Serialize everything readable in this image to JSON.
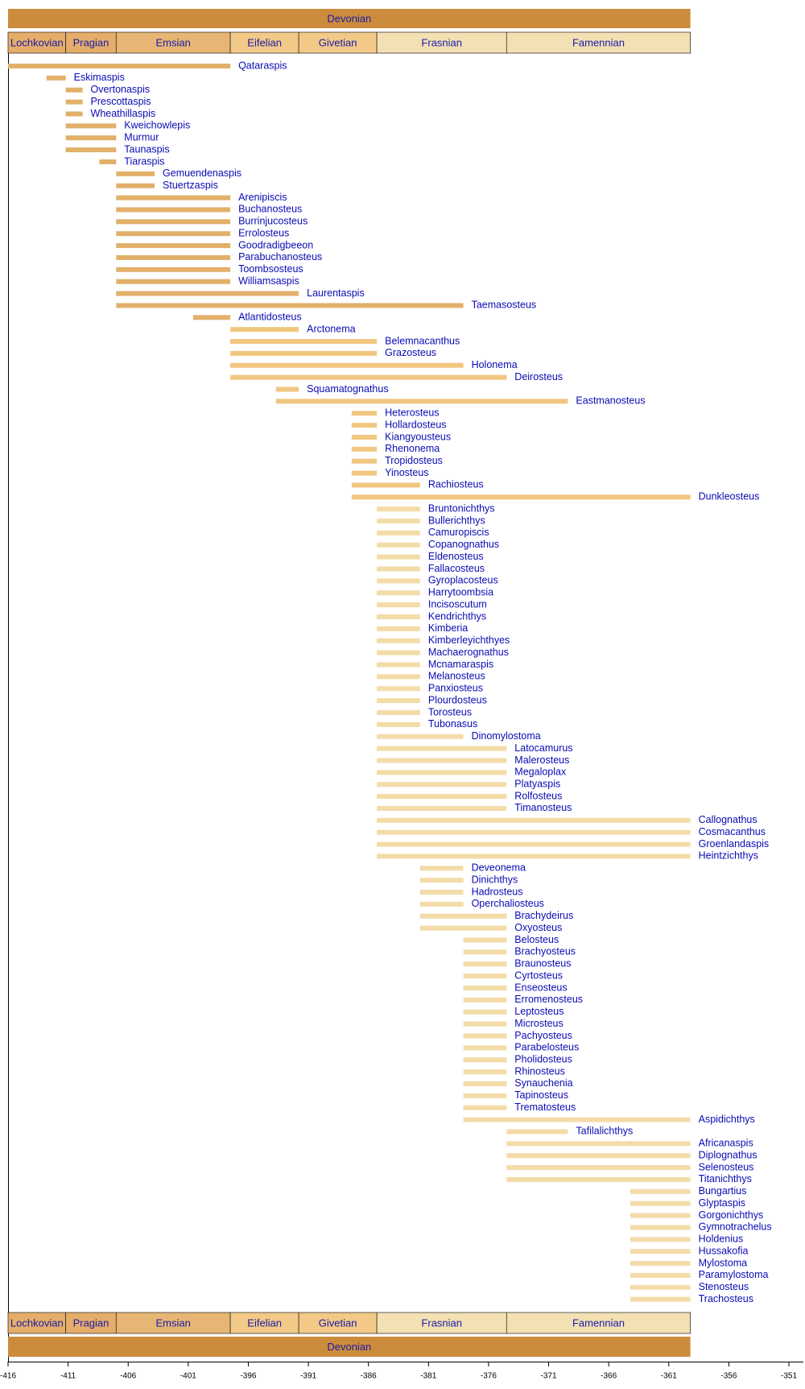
{
  "chart_data": {
    "type": "timeline",
    "xlim": [
      -416,
      -351
    ],
    "xticks": [
      -416,
      -411,
      -406,
      -401,
      -396,
      -391,
      -386,
      -381,
      -376,
      -371,
      -366,
      -361,
      -356,
      -351
    ],
    "period": {
      "name": "Devonian",
      "start": -416,
      "end": -359.2,
      "color": "#cc8c3c"
    },
    "stages": [
      {
        "name": "Lochkovian",
        "start": -416,
        "end": -411.2,
        "color": "#e5ad69"
      },
      {
        "name": "Pragian",
        "start": -411.2,
        "end": -407,
        "color": "#e5ad69"
      },
      {
        "name": "Emsian",
        "start": -407,
        "end": -397.5,
        "color": "#e7b674"
      },
      {
        "name": "Eifelian",
        "start": -397.5,
        "end": -391.8,
        "color": "#f2c987"
      },
      {
        "name": "Givetian",
        "start": -391.8,
        "end": -385.3,
        "color": "#f2c987"
      },
      {
        "name": "Frasnian",
        "start": -385.3,
        "end": -374.5,
        "color": "#f3e0b3"
      },
      {
        "name": "Famennian",
        "start": -374.5,
        "end": -359.2,
        "color": "#f3e0b3"
      }
    ],
    "taxa": [
      {
        "name": "Qataraspis",
        "start": -416,
        "end": -397.5,
        "color": "#e2b06a"
      },
      {
        "name": "Eskimaspis",
        "start": -412.8,
        "end": -411.2,
        "color": "#e2b06a"
      },
      {
        "name": "Overtonaspis",
        "start": -411.2,
        "end": -409.8,
        "color": "#e2b06a"
      },
      {
        "name": "Prescottaspis",
        "start": -411.2,
        "end": -409.8,
        "color": "#e2b06a"
      },
      {
        "name": "Wheathillaspis",
        "start": -411.2,
        "end": -409.8,
        "color": "#e2b06a"
      },
      {
        "name": "Kweichowlepis",
        "start": -411.2,
        "end": -407,
        "color": "#e2b06a"
      },
      {
        "name": "Murmur",
        "start": -411.2,
        "end": -407,
        "color": "#e2b06a"
      },
      {
        "name": "Taunaspis",
        "start": -411.2,
        "end": -407,
        "color": "#e2b06a"
      },
      {
        "name": "Tiaraspis",
        "start": -408.4,
        "end": -407,
        "color": "#e2b06a"
      },
      {
        "name": "Gemuendenaspis",
        "start": -407,
        "end": -403.8,
        "color": "#e2b06a"
      },
      {
        "name": "Stuertzaspis",
        "start": -407,
        "end": -403.8,
        "color": "#e2b06a"
      },
      {
        "name": "Arenipiscis",
        "start": -407,
        "end": -397.5,
        "color": "#e2b06a"
      },
      {
        "name": "Buchanosteus",
        "start": -407,
        "end": -397.5,
        "color": "#e2b06a"
      },
      {
        "name": "Burrinjucosteus",
        "start": -407,
        "end": -397.5,
        "color": "#e2b06a"
      },
      {
        "name": "Errolosteus",
        "start": -407,
        "end": -397.5,
        "color": "#e2b06a"
      },
      {
        "name": "Goodradigbeeon",
        "start": -407,
        "end": -397.5,
        "color": "#e2b06a"
      },
      {
        "name": "Parabuchanosteus",
        "start": -407,
        "end": -397.5,
        "color": "#e2b06a"
      },
      {
        "name": "Toombsosteus",
        "start": -407,
        "end": -397.5,
        "color": "#e2b06a"
      },
      {
        "name": "Williamsaspis",
        "start": -407,
        "end": -397.5,
        "color": "#e2b06a"
      },
      {
        "name": "Laurentaspis",
        "start": -407,
        "end": -391.8,
        "color": "#e2b06a"
      },
      {
        "name": "Taemasosteus",
        "start": -407,
        "end": -378.1,
        "color": "#e2b06a"
      },
      {
        "name": "Atlantidosteus",
        "start": -400.6,
        "end": -397.5,
        "color": "#e2b06a"
      },
      {
        "name": "Arctonema",
        "start": -397.5,
        "end": -391.8,
        "color": "#f1c67f"
      },
      {
        "name": "Belemnacanthus",
        "start": -397.5,
        "end": -385.3,
        "color": "#f1c67f"
      },
      {
        "name": "Grazosteus",
        "start": -397.5,
        "end": -385.3,
        "color": "#f1c67f"
      },
      {
        "name": "Holonema",
        "start": -397.5,
        "end": -378.1,
        "color": "#f1c67f"
      },
      {
        "name": "Deirosteus",
        "start": -397.5,
        "end": -374.5,
        "color": "#f1c67f"
      },
      {
        "name": "Squamatognathus",
        "start": -393.7,
        "end": -391.8,
        "color": "#f1c67f"
      },
      {
        "name": "Eastmanosteus",
        "start": -393.7,
        "end": -369.4,
        "color": "#f1c67f"
      },
      {
        "name": "Heterosteus",
        "start": -387.4,
        "end": -385.3,
        "color": "#f1c67f"
      },
      {
        "name": "Hollardosteus",
        "start": -387.4,
        "end": -385.3,
        "color": "#f1c67f"
      },
      {
        "name": "Kiangyousteus",
        "start": -387.4,
        "end": -385.3,
        "color": "#f1c67f"
      },
      {
        "name": "Rhenonema",
        "start": -387.4,
        "end": -385.3,
        "color": "#f1c67f"
      },
      {
        "name": "Tropidosteus",
        "start": -387.4,
        "end": -385.3,
        "color": "#f1c67f"
      },
      {
        "name": "Yinosteus",
        "start": -387.4,
        "end": -385.3,
        "color": "#f1c67f"
      },
      {
        "name": "Rachiosteus",
        "start": -387.4,
        "end": -381.7,
        "color": "#f1c67f"
      },
      {
        "name": "Dunkleosteus",
        "start": -387.4,
        "end": -359.2,
        "color": "#f1c67f"
      },
      {
        "name": "Bruntonichthys",
        "start": -385.3,
        "end": -381.7,
        "color": "#f3dca8"
      },
      {
        "name": "Bullerichthys",
        "start": -385.3,
        "end": -381.7,
        "color": "#f3dca8"
      },
      {
        "name": "Camuropiscis",
        "start": -385.3,
        "end": -381.7,
        "color": "#f3dca8"
      },
      {
        "name": "Copanognathus",
        "start": -385.3,
        "end": -381.7,
        "color": "#f3dca8"
      },
      {
        "name": "Eldenosteus",
        "start": -385.3,
        "end": -381.7,
        "color": "#f3dca8"
      },
      {
        "name": "Fallacosteus",
        "start": -385.3,
        "end": -381.7,
        "color": "#f3dca8"
      },
      {
        "name": "Gyroplacosteus",
        "start": -385.3,
        "end": -381.7,
        "color": "#f3dca8"
      },
      {
        "name": "Harrytoombsia",
        "start": -385.3,
        "end": -381.7,
        "color": "#f3dca8"
      },
      {
        "name": "Incisoscutum",
        "start": -385.3,
        "end": -381.7,
        "color": "#f3dca8"
      },
      {
        "name": "Kendrichthys",
        "start": -385.3,
        "end": -381.7,
        "color": "#f3dca8"
      },
      {
        "name": "Kimberia",
        "start": -385.3,
        "end": -381.7,
        "color": "#f3dca8"
      },
      {
        "name": "Kimberleyichthyes",
        "start": -385.3,
        "end": -381.7,
        "color": "#f3dca8"
      },
      {
        "name": "Machaerognathus",
        "start": -385.3,
        "end": -381.7,
        "color": "#f3dca8"
      },
      {
        "name": "Mcnamaraspis",
        "start": -385.3,
        "end": -381.7,
        "color": "#f3dca8"
      },
      {
        "name": "Melanosteus",
        "start": -385.3,
        "end": -381.7,
        "color": "#f3dca8"
      },
      {
        "name": "Panxiosteus",
        "start": -385.3,
        "end": -381.7,
        "color": "#f3dca8"
      },
      {
        "name": "Plourdosteus",
        "start": -385.3,
        "end": -381.7,
        "color": "#f3dca8"
      },
      {
        "name": "Torosteus",
        "start": -385.3,
        "end": -381.7,
        "color": "#f3dca8"
      },
      {
        "name": "Tubonasus",
        "start": -385.3,
        "end": -381.7,
        "color": "#f3dca8"
      },
      {
        "name": "Dinomylostoma",
        "start": -385.3,
        "end": -378.1,
        "color": "#f3dca8"
      },
      {
        "name": "Latocamurus",
        "start": -385.3,
        "end": -374.5,
        "color": "#f3dca8"
      },
      {
        "name": "Malerosteus",
        "start": -385.3,
        "end": -374.5,
        "color": "#f3dca8"
      },
      {
        "name": "Megaloplax",
        "start": -385.3,
        "end": -374.5,
        "color": "#f3dca8"
      },
      {
        "name": "Platyaspis",
        "start": -385.3,
        "end": -374.5,
        "color": "#f3dca8"
      },
      {
        "name": "Rolfosteus",
        "start": -385.3,
        "end": -374.5,
        "color": "#f3dca8"
      },
      {
        "name": "Timanosteus",
        "start": -385.3,
        "end": -374.5,
        "color": "#f3dca8"
      },
      {
        "name": "Callognathus",
        "start": -385.3,
        "end": -359.2,
        "color": "#f3dca8"
      },
      {
        "name": "Cosmacanthus",
        "start": -385.3,
        "end": -359.2,
        "color": "#f3dca8"
      },
      {
        "name": "Groenlandaspis",
        "start": -385.3,
        "end": -359.2,
        "color": "#f3dca8"
      },
      {
        "name": "Heintzichthys",
        "start": -385.3,
        "end": -359.2,
        "color": "#f3dca8"
      },
      {
        "name": "Deveonema",
        "start": -381.7,
        "end": -378.1,
        "color": "#f3dca8"
      },
      {
        "name": "Dinichthys",
        "start": -381.7,
        "end": -378.1,
        "color": "#f3dca8"
      },
      {
        "name": "Hadrosteus",
        "start": -381.7,
        "end": -378.1,
        "color": "#f3dca8"
      },
      {
        "name": "Operchaliosteus",
        "start": -381.7,
        "end": -378.1,
        "color": "#f3dca8"
      },
      {
        "name": "Brachydeirus",
        "start": -381.7,
        "end": -374.5,
        "color": "#f3dca8"
      },
      {
        "name": "Oxyosteus",
        "start": -381.7,
        "end": -374.5,
        "color": "#f3dca8"
      },
      {
        "name": "Belosteus",
        "start": -378.1,
        "end": -374.5,
        "color": "#f3dca8"
      },
      {
        "name": "Brachyosteus",
        "start": -378.1,
        "end": -374.5,
        "color": "#f3dca8"
      },
      {
        "name": "Braunosteus",
        "start": -378.1,
        "end": -374.5,
        "color": "#f3dca8"
      },
      {
        "name": "Cyrtosteus",
        "start": -378.1,
        "end": -374.5,
        "color": "#f3dca8"
      },
      {
        "name": "Enseosteus",
        "start": -378.1,
        "end": -374.5,
        "color": "#f3dca8"
      },
      {
        "name": "Erromenosteus",
        "start": -378.1,
        "end": -374.5,
        "color": "#f3dca8"
      },
      {
        "name": "Leptosteus",
        "start": -378.1,
        "end": -374.5,
        "color": "#f3dca8"
      },
      {
        "name": "Microsteus",
        "start": -378.1,
        "end": -374.5,
        "color": "#f3dca8"
      },
      {
        "name": "Pachyosteus",
        "start": -378.1,
        "end": -374.5,
        "color": "#f3dca8"
      },
      {
        "name": "Parabelosteus",
        "start": -378.1,
        "end": -374.5,
        "color": "#f3dca8"
      },
      {
        "name": "Pholidosteus",
        "start": -378.1,
        "end": -374.5,
        "color": "#f3dca8"
      },
      {
        "name": "Rhinosteus",
        "start": -378.1,
        "end": -374.5,
        "color": "#f3dca8"
      },
      {
        "name": "Synauchenia",
        "start": -378.1,
        "end": -374.5,
        "color": "#f3dca8"
      },
      {
        "name": "Tapinosteus",
        "start": -378.1,
        "end": -374.5,
        "color": "#f3dca8"
      },
      {
        "name": "Trematosteus",
        "start": -378.1,
        "end": -374.5,
        "color": "#f3dca8"
      },
      {
        "name": "Aspidichthys",
        "start": -378.1,
        "end": -359.2,
        "color": "#f3dca8"
      },
      {
        "name": "Tafilalichthys",
        "start": -374.5,
        "end": -369.4,
        "color": "#f3dca8"
      },
      {
        "name": "Africanaspis",
        "start": -374.5,
        "end": -359.2,
        "color": "#f3dca8"
      },
      {
        "name": "Diplognathus",
        "start": -374.5,
        "end": -359.2,
        "color": "#f3dca8"
      },
      {
        "name": "Selenosteus",
        "start": -374.5,
        "end": -359.2,
        "color": "#f3dca8"
      },
      {
        "name": "Titanichthys",
        "start": -374.5,
        "end": -359.2,
        "color": "#f3dca8"
      },
      {
        "name": "Bungartius",
        "start": -364.2,
        "end": -359.2,
        "color": "#f3dca8"
      },
      {
        "name": "Glyptaspis",
        "start": -364.2,
        "end": -359.2,
        "color": "#f3dca8"
      },
      {
        "name": "Gorgonichthys",
        "start": -364.2,
        "end": -359.2,
        "color": "#f3dca8"
      },
      {
        "name": "Gymnotrachelus",
        "start": -364.2,
        "end": -359.2,
        "color": "#f3dca8"
      },
      {
        "name": "Holdenius",
        "start": -364.2,
        "end": -359.2,
        "color": "#f3dca8"
      },
      {
        "name": "Hussakofia",
        "start": -364.2,
        "end": -359.2,
        "color": "#f3dca8"
      },
      {
        "name": "Mylostoma",
        "start": -364.2,
        "end": -359.2,
        "color": "#f3dca8"
      },
      {
        "name": "Paramylostoma",
        "start": -364.2,
        "end": -359.2,
        "color": "#f3dca8"
      },
      {
        "name": "Stenosteus",
        "start": -364.2,
        "end": -359.2,
        "color": "#f3dca8"
      },
      {
        "name": "Trachosteus",
        "start": -364.2,
        "end": -359.2,
        "color": "#f3dca8"
      }
    ]
  }
}
